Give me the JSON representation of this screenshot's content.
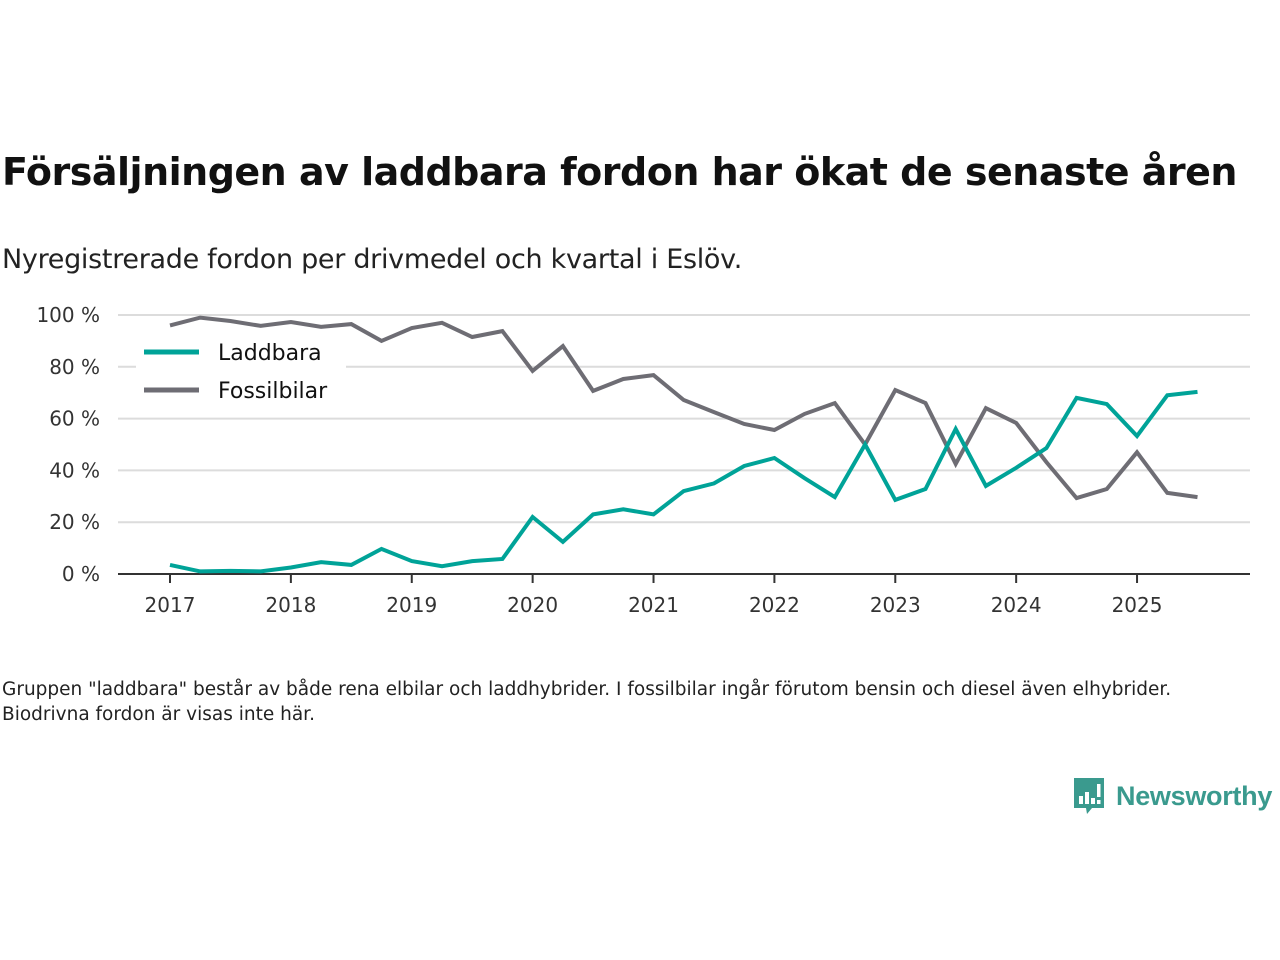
{
  "header": {
    "title": "Försäljningen av laddbara fordon har ökat de senaste åren",
    "subtitle": "Nyregistrerade fordon per drivmedel och kvartal i Eslöv."
  },
  "footnote": "Gruppen \"laddbara\" består av både rena elbilar och laddhybrider. I fossilbilar ingår förutom bensin och diesel även elhybrider. Biodrivna fordon är visas inte här.",
  "brand": {
    "name": "Newsworthy",
    "icon": "newsworthy-logo-icon",
    "color": "#3a9a8e"
  },
  "chart_data": {
    "type": "line",
    "title": "Försäljningen av laddbara fordon har ökat de senaste åren",
    "subtitle": "Nyregistrerade fordon per drivmedel och kvartal i Eslöv.",
    "xlabel": "",
    "ylabel": "",
    "x": [
      "2017Q1",
      "2017Q2",
      "2017Q3",
      "2017Q4",
      "2018Q1",
      "2018Q2",
      "2018Q3",
      "2018Q4",
      "2019Q1",
      "2019Q2",
      "2019Q3",
      "2019Q4",
      "2020Q1",
      "2020Q2",
      "2020Q3",
      "2020Q4",
      "2021Q1",
      "2021Q2",
      "2021Q3",
      "2021Q4",
      "2022Q1",
      "2022Q2",
      "2022Q3",
      "2022Q4",
      "2023Q1",
      "2023Q2",
      "2023Q3",
      "2023Q4",
      "2024Q1",
      "2024Q2",
      "2024Q3",
      "2024Q4",
      "2025Q1",
      "2025Q2",
      "2025Q3"
    ],
    "x_ticks": [
      "2017",
      "2018",
      "2019",
      "2020",
      "2021",
      "2022",
      "2023",
      "2024",
      "2025"
    ],
    "y_ticks": [
      "0 %",
      "20 %",
      "40 %",
      "60 %",
      "80 %",
      "100 %"
    ],
    "y_tick_values": [
      0,
      20,
      40,
      60,
      80,
      100
    ],
    "ylim": [
      0,
      100
    ],
    "grid": true,
    "legend_position": "top-left",
    "series": [
      {
        "name": "Laddbara",
        "color": "#00a398",
        "values": [
          3.5,
          1,
          1.2,
          1,
          2.5,
          4.6,
          3.5,
          9.7,
          5,
          3,
          5,
          5.8,
          22,
          12.4,
          23,
          25,
          23,
          32,
          35,
          41.7,
          44.8,
          37,
          29.7,
          50,
          28.6,
          32.8,
          56,
          34,
          41,
          48.6,
          68,
          65.6,
          53.3,
          69,
          70.3
        ]
      },
      {
        "name": "Fossilbilar",
        "color": "#6e6d74",
        "values": [
          96,
          99,
          97.7,
          95.8,
          97.3,
          95.4,
          96.5,
          90,
          95,
          97,
          91.5,
          93.8,
          78.4,
          88,
          70.7,
          75.3,
          76.8,
          67.2,
          62.5,
          57.9,
          55.6,
          61.8,
          66,
          50,
          71,
          66,
          42.5,
          64,
          58.3,
          43.2,
          29.3,
          32.8,
          47,
          31.3,
          29.7
        ]
      }
    ]
  }
}
